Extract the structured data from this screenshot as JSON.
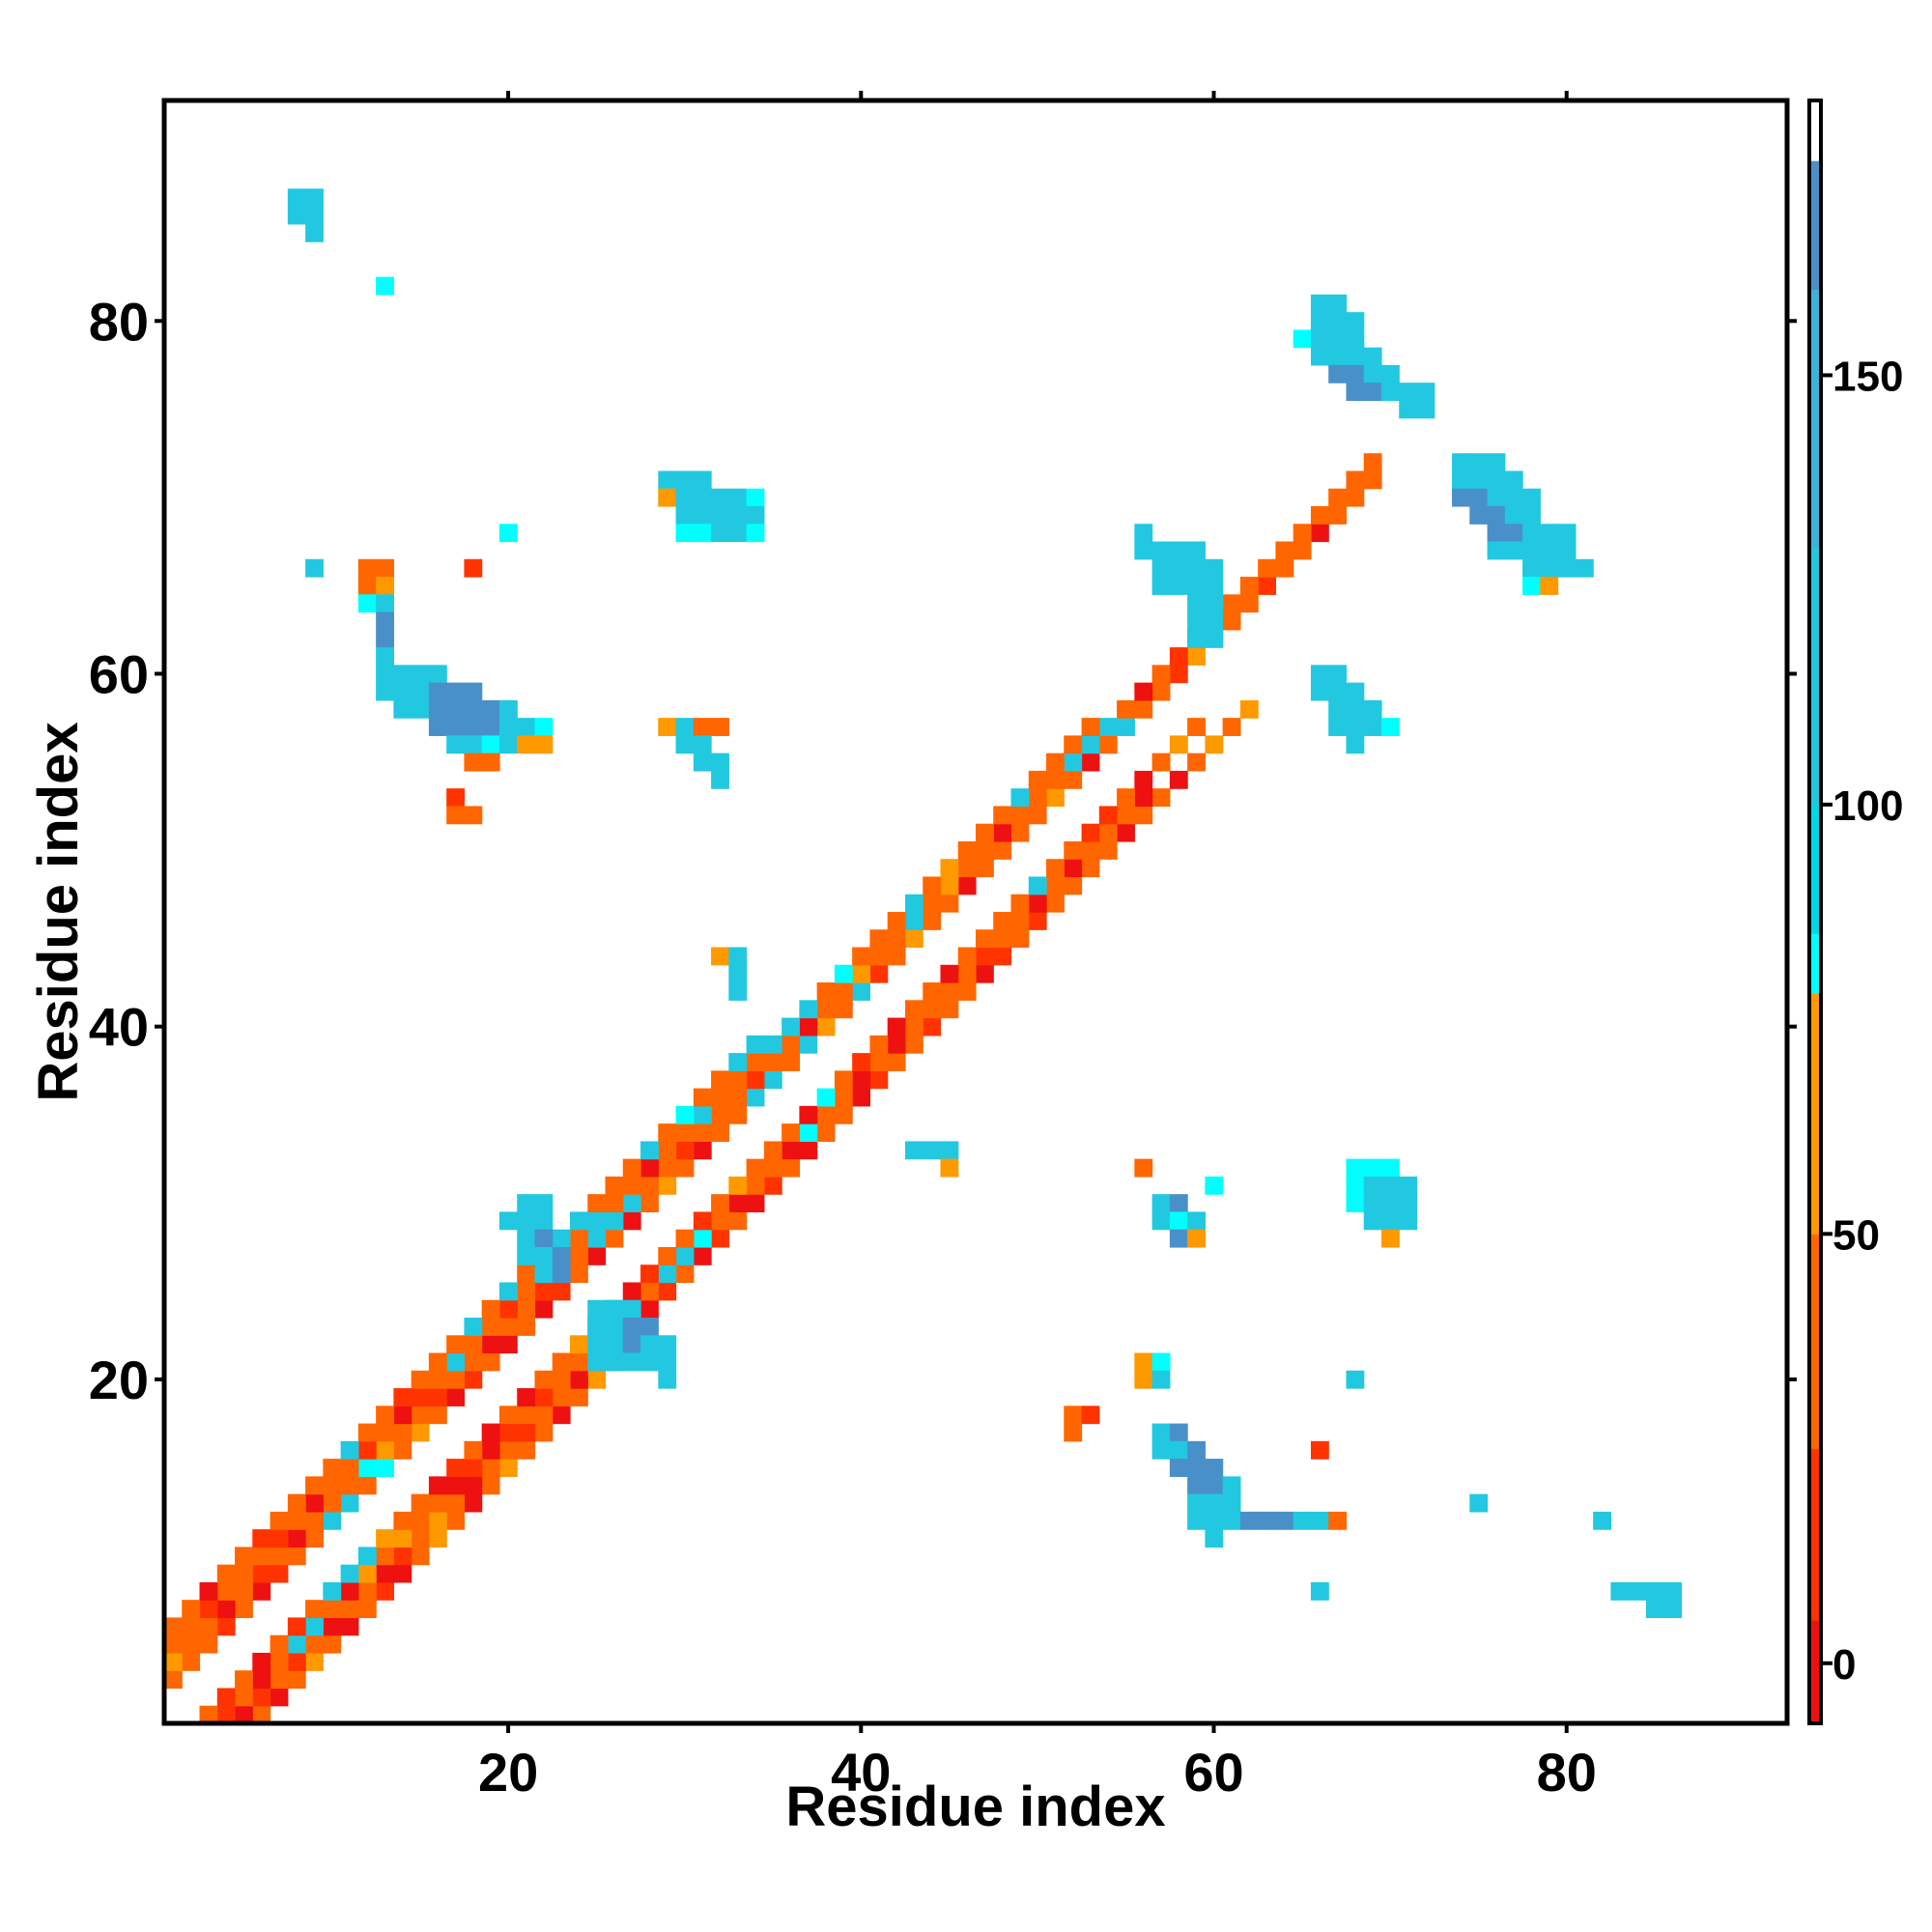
{
  "chart_data": {
    "type": "heatmap",
    "title": "",
    "xlabel": "Residue index",
    "ylabel": "Residue index",
    "xlim": [
      0.5,
      92.5
    ],
    "ylim": [
      0.5,
      92.5
    ],
    "x_ticks": [
      20,
      40,
      60,
      80
    ],
    "y_ticks": [
      20,
      40,
      60,
      80
    ],
    "colorbar": {
      "range": [
        -7,
        182
      ],
      "ticks": [
        0,
        50,
        100,
        150
      ],
      "bands": [
        {
          "from": -7,
          "to": 5,
          "color": "#ee1111"
        },
        {
          "from": 5,
          "to": 25,
          "color": "#ff3300"
        },
        {
          "from": 25,
          "to": 50,
          "color": "#ff6600"
        },
        {
          "from": 50,
          "to": 78,
          "color": "#ff9900"
        },
        {
          "from": 78,
          "to": 85,
          "color": "#00ffff"
        },
        {
          "from": 85,
          "to": 100,
          "color": "#00d7e8"
        },
        {
          "from": 100,
          "to": 130,
          "color": "#22c8e0"
        },
        {
          "from": 130,
          "to": 160,
          "color": "#3db3db"
        },
        {
          "from": 160,
          "to": 175,
          "color": "#4a90c8"
        },
        {
          "from": 175,
          "to": 182,
          "color": "#ffffff"
        }
      ]
    },
    "value_classes": {
      "a": {
        "value": 120,
        "color": "#22c8e0"
      },
      "b": {
        "value": 160,
        "color": "#4a90c8"
      },
      "c": {
        "value": 82,
        "color": "#00ffff"
      },
      "r": {
        "value": 0,
        "color": "#ee1111"
      },
      "s": {
        "value": 15,
        "color": "#ff3300"
      },
      "o": {
        "value": 40,
        "color": "#ff6600"
      },
      "y": {
        "value": 65,
        "color": "#ff9900"
      }
    },
    "band_offsets": {
      "-5": "roroyoroyorosroyoroyooroyo",
      "-4": "sosorsosoroorsoyoroosoorooorsorsorsoroorsoosoorsosoooorooroyoy",
      "-3": "rorsoroaaoryoyoorsrsosoororoaacoroorcoororoooosoororooor",
      "-2": "yoosorosoaaayoorsororooyoorsoosoyooorcosoroorooooaoossoroyo",
      "2": "ooosorsooaaocoyorsororsororoyorooaaoayoasoyoorooooyoroaoosyooosoorooo",
      "3": "yoorosorooocyoosooroosooaaaoosooosoorooyooaoyooroooaaaorososooooooooo",
      "4": "oosooosoroosorsoaoosorsoaoorooaoooaaaocoooaoyoooaoooo",
      "5": "ooroosooooaoosoooaoaooaaoooaocooaa"
    },
    "off_diagonal_blocks": [
      {
        "row": 87,
        "col": 8,
        "pattern": "aa\naa\n.a"
      },
      {
        "row": 82,
        "col": 13,
        "pattern": "c"
      },
      {
        "row": 81,
        "col": 65,
        "pattern": ".aa.\n.aaa\ncaaa\n.aaaa\n..bbaa\n...bbaaa\n......aa"
      },
      {
        "row": 71,
        "col": 29,
        "pattern": "aaa\nyaaaac\n.aaaaa\n.ccaac"
      },
      {
        "row": 68,
        "col": 56,
        "pattern": "a\naaaa\n.aaaa\n.aaaa"
      },
      {
        "row": 72,
        "col": 74,
        "pattern": "aaa\naaaa\nbbaaa\n.bbaa\n..bbaaa\n..aaaaa\n....aaaa\n....cy"
      },
      {
        "row": 68,
        "col": 20,
        "pattern": "c"
      },
      {
        "row": 66,
        "col": 9,
        "pattern": "a"
      },
      {
        "row": 66,
        "col": 12,
        "pattern": "oo....s\noy\nca\n.b\n.b\n.a"
      },
      {
        "row": 60,
        "col": 13,
        "pattern": "aaaa\naaabbb\n.aabbbba\n...bbbbaac\n....aacayy\n.....oo"
      },
      {
        "row": 53,
        "col": 17,
        "pattern": "s\noo"
      },
      {
        "row": 57,
        "col": 29,
        "pattern": "yaoo\n.aa\n..aa\n...a"
      },
      {
        "row": 64,
        "col": 59,
        "pattern": "aa\naa\naa"
      },
      {
        "row": 60,
        "col": 66,
        "pattern": "aa\naaa\n.aaa\n.aaac\n..a"
      },
      {
        "row": 44,
        "col": 32,
        "pattern": "ya\n.a\n.a"
      },
      {
        "row": 33,
        "col": 43,
        "pattern": "aaa\n..y"
      },
      {
        "row": 32,
        "col": 56,
        "pattern": "o\n....c\n.ab\n.aca\n..by"
      },
      {
        "row": 32,
        "col": 68,
        "pattern": "ccc\ncaaa\ncaaa\n.aaa\n..y"
      },
      {
        "row": 30,
        "col": 20,
        "pattern": ".aa\naaa\n.ab\n.aab\n..ab"
      },
      {
        "row": 24,
        "col": 25,
        "pattern": "aaa\naabb\naabaa\naaaaa\n....a"
      },
      {
        "row": 21,
        "col": 56,
        "pattern": "yc\nya"
      },
      {
        "row": 18,
        "col": 52,
        "pattern": "os\no....ab\n.....aab\n......bbb\n.......bba\n.......aaa.............a\n.......aaabbbaao\n........a"
      },
      {
        "row": 20,
        "col": 68,
        "pattern": "a"
      },
      {
        "row": 16,
        "col": 66,
        "pattern": "s"
      },
      {
        "row": 12,
        "col": 82,
        "pattern": "a"
      },
      {
        "row": 8,
        "col": 66,
        "pattern": "a"
      },
      {
        "row": 8,
        "col": 83,
        "pattern": "aaaa\n..aa"
      }
    ]
  }
}
